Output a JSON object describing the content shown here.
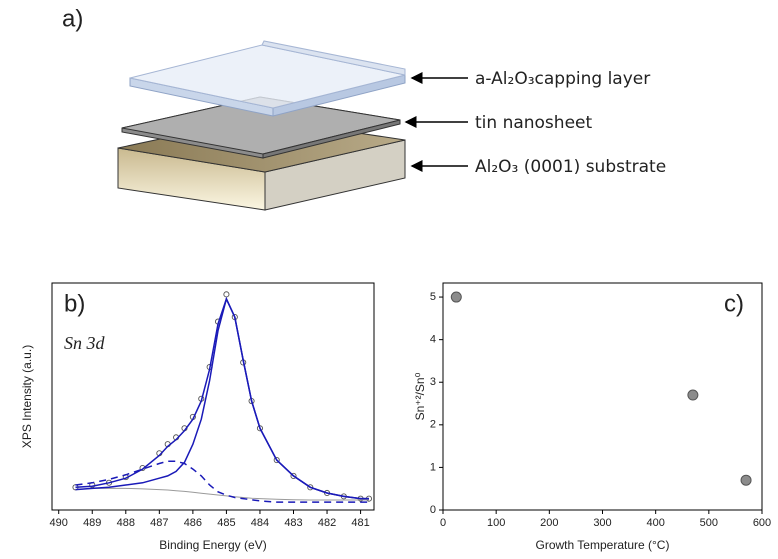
{
  "diagram": {
    "label": "a)",
    "layers": [
      "a-Al₂O₃capping layer",
      "tin nanosheet",
      "Al₂O₃ (0001) substrate"
    ]
  },
  "chart_data": [
    {
      "type": "line",
      "panel_label": "b)",
      "annotation": "Sn 3d",
      "x_label": "Binding Energy (eV)",
      "y_label": "XPS Intensity (a.u.)",
      "x": [
        489.5,
        489,
        488.5,
        488,
        487.5,
        487,
        486.75,
        486.5,
        486.25,
        486,
        485.75,
        485.5,
        485.25,
        485,
        484.75,
        484.5,
        484.25,
        484,
        483.5,
        483,
        482.5,
        482,
        481.5,
        481,
        480.75
      ],
      "series": [
        {
          "color": "#555555",
          "marker": "circle",
          "values": [
            0.1,
            0.11,
            0.12,
            0.145,
            0.185,
            0.25,
            0.29,
            0.32,
            0.36,
            0.41,
            0.49,
            0.63,
            0.83,
            0.95,
            0.85,
            0.65,
            0.48,
            0.36,
            0.22,
            0.15,
            0.1,
            0.075,
            0.06,
            0.05,
            0.05
          ]
        },
        {
          "color": "#9a9a9a",
          "values": [
            0.09,
            0.095,
            0.095,
            0.095,
            0.093,
            0.09,
            0.088,
            0.085,
            0.082,
            0.078,
            0.074,
            0.07,
            0.066,
            0.062,
            0.058,
            0.055,
            0.052,
            0.05,
            0.047,
            0.045,
            0.044,
            0.044,
            0.044,
            0.044,
            0.044
          ]
        },
        {
          "color": "#1a1ab8",
          "dashed": true,
          "values": [
            0.11,
            0.12,
            0.135,
            0.155,
            0.18,
            0.205,
            0.215,
            0.215,
            0.205,
            0.18,
            0.15,
            0.11,
            0.08,
            0.065,
            0.055,
            0.05,
            0.045,
            0.04,
            0.035,
            0.035,
            0.035,
            0.035,
            0.035,
            0.035,
            0.035
          ]
        },
        {
          "color": "#1a1ab8",
          "values": [
            0.09,
            0.095,
            0.1,
            0.11,
            0.12,
            0.14,
            0.15,
            0.17,
            0.21,
            0.29,
            0.4,
            0.57,
            0.79,
            0.93,
            0.85,
            0.66,
            0.48,
            0.36,
            0.22,
            0.15,
            0.1,
            0.075,
            0.06,
            0.05,
            0.05
          ]
        },
        {
          "color": "#1a1ab8",
          "values": [
            0.1,
            0.105,
            0.12,
            0.14,
            0.18,
            0.24,
            0.28,
            0.31,
            0.35,
            0.4,
            0.48,
            0.62,
            0.82,
            0.93,
            0.85,
            0.66,
            0.48,
            0.36,
            0.22,
            0.15,
            0.1,
            0.075,
            0.06,
            0.05,
            0.05
          ]
        }
      ],
      "xlim": [
        490.2,
        480.6
      ],
      "xticks": [
        490,
        489,
        488,
        487,
        486,
        485,
        484,
        483,
        482,
        481
      ],
      "ylim": [
        0,
        1
      ]
    },
    {
      "type": "scatter",
      "panel_label": "c)",
      "x_label": "Growth Temperature (°C)",
      "y_label": "Sn⁺²/Sn⁰",
      "x": [
        25,
        470,
        570
      ],
      "values": [
        5,
        2.7,
        0.7
      ],
      "color": "#8c8c8c",
      "xlim": [
        0,
        600
      ],
      "xticks": [
        0,
        100,
        200,
        300,
        400,
        500,
        600
      ],
      "ylim": [
        0,
        5.33
      ],
      "yticks": [
        0,
        1,
        2,
        3,
        4,
        5
      ]
    }
  ]
}
